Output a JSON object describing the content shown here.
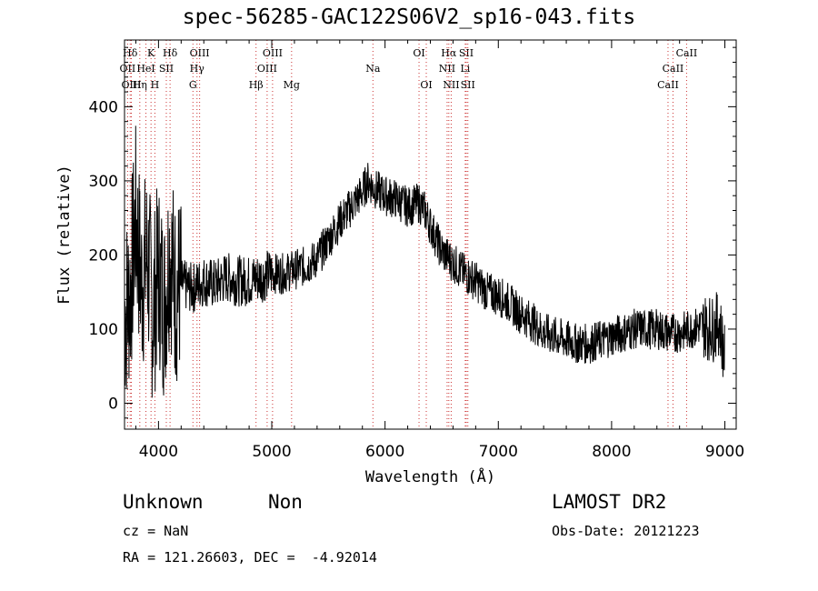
{
  "chart_data": {
    "type": "line",
    "title": "spec-56285-GAC122S06V2_sp16-043.fits",
    "xlabel": "Wavelength (Å)",
    "ylabel": "Flux (relative)",
    "xlim": [
      3700,
      9100
    ],
    "ylim": [
      -35,
      490
    ],
    "xticks": [
      4000,
      5000,
      6000,
      7000,
      8000,
      9000
    ],
    "yticks": [
      0,
      100,
      200,
      300,
      400
    ],
    "grid": false,
    "series": [
      {
        "x": [
          3700,
          3750,
          3800,
          3850,
          3900,
          3950,
          4000,
          4050,
          4100,
          4150,
          4200,
          4300,
          4400,
          4500,
          4600,
          4700,
          4800,
          4900,
          5000,
          5100,
          5200,
          5300,
          5400,
          5500,
          5600,
          5700,
          5800,
          5850,
          5900,
          5950,
          6000,
          6100,
          6200,
          6300,
          6350,
          6400,
          6500,
          6600,
          6700,
          6800,
          6900,
          7000,
          7100,
          7200,
          7300,
          7400,
          7500,
          7600,
          7700,
          7800,
          7900,
          8000,
          8100,
          8200,
          8300,
          8400,
          8500,
          8600,
          8700,
          8800,
          8900,
          8950,
          9000
        ],
        "values": [
          120,
          150,
          250,
          160,
          200,
          120,
          180,
          130,
          210,
          150,
          160,
          155,
          165,
          160,
          170,
          165,
          165,
          170,
          175,
          175,
          180,
          185,
          195,
          220,
          245,
          265,
          285,
          300,
          290,
          285,
          280,
          275,
          265,
          270,
          260,
          240,
          205,
          190,
          175,
          165,
          150,
          145,
          135,
          120,
          110,
          95,
          90,
          85,
          80,
          80,
          85,
          90,
          95,
          100,
          100,
          100,
          95,
          95,
          100,
          105,
          100,
          110,
          60
        ]
      }
    ],
    "line_markers": [
      {
        "label": "Hδ",
        "x": 3750,
        "row": 0
      },
      {
        "label": "K",
        "x": 3934,
        "row": 0
      },
      {
        "label": "Hδ",
        "x": 4102,
        "row": 0
      },
      {
        "label": "OIII",
        "x": 4363,
        "row": 0
      },
      {
        "label": "OIII",
        "x": 5007,
        "row": 0
      },
      {
        "label": "OI",
        "x": 6300,
        "row": 0
      },
      {
        "label": "Hα",
        "x": 6563,
        "row": 0
      },
      {
        "label": "SII",
        "x": 6717,
        "row": 0
      },
      {
        "label": "CaII",
        "x": 8662,
        "row": 0
      },
      {
        "label": "OII",
        "x": 3727,
        "row": 1
      },
      {
        "label": "HeI",
        "x": 3889,
        "row": 1
      },
      {
        "label": "SII",
        "x": 4069,
        "row": 1
      },
      {
        "label": "Hγ",
        "x": 4340,
        "row": 1
      },
      {
        "label": "OIII",
        "x": 4959,
        "row": 1
      },
      {
        "label": "Na",
        "x": 5893,
        "row": 1
      },
      {
        "label": "NII",
        "x": 6548,
        "row": 1
      },
      {
        "label": "Li",
        "x": 6708,
        "row": 1
      },
      {
        "label": "CaII",
        "x": 8542,
        "row": 1
      },
      {
        "label": "OIII",
        "x": 3760,
        "row": 2
      },
      {
        "label": "Hη",
        "x": 3835,
        "row": 2
      },
      {
        "label": "H",
        "x": 3968,
        "row": 2
      },
      {
        "label": "G",
        "x": 4304,
        "row": 2
      },
      {
        "label": "Hβ",
        "x": 4861,
        "row": 2
      },
      {
        "label": "Mg",
        "x": 5175,
        "row": 2
      },
      {
        "label": "OI",
        "x": 6364,
        "row": 2
      },
      {
        "label": "NII",
        "x": 6584,
        "row": 2
      },
      {
        "label": "SII",
        "x": 6731,
        "row": 2
      },
      {
        "label": "CaII",
        "x": 8498,
        "row": 2
      }
    ]
  },
  "colors": {
    "spectrum": "#000000",
    "marker_line": "#cc3333",
    "axes": "#000000",
    "background": "#ffffff"
  },
  "footer": {
    "class_label": "Unknown",
    "subclass_label": "Non",
    "survey": "LAMOST DR2",
    "redshift_text": "cz = NaN",
    "obs_date_text": "Obs-Date: 20121223",
    "coords_text": "RA = 121.26603, DEC =  -4.92014"
  }
}
